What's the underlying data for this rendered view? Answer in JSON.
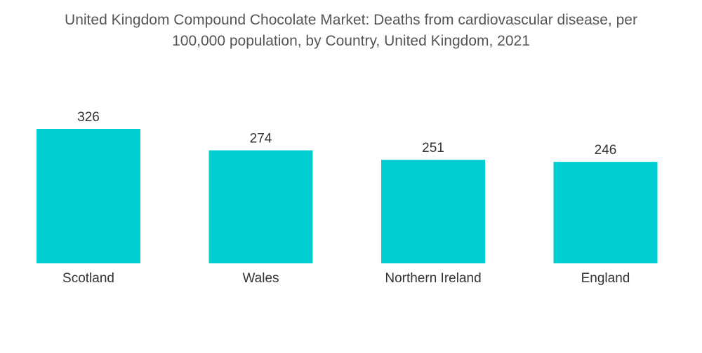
{
  "title": {
    "line1": "United Kingdom Compound Chocolate Market: Deaths from cardiovascular disease, per",
    "line2": "100,000 population, by Country, United Kingdom, 2021"
  },
  "chart_data": {
    "type": "bar",
    "title": "United Kingdom Compound Chocolate Market: Deaths from cardiovascular disease, per 100,000 population, by Country, United Kingdom, 2021",
    "categories": [
      "Scotland",
      "Wales",
      "Northern Ireland",
      "England"
    ],
    "values": [
      326,
      274,
      251,
      246
    ],
    "xlabel": "",
    "ylabel": "",
    "ylim": [
      0,
      326
    ],
    "grid": false,
    "legend": "none",
    "bar_color": "#00CED1"
  }
}
